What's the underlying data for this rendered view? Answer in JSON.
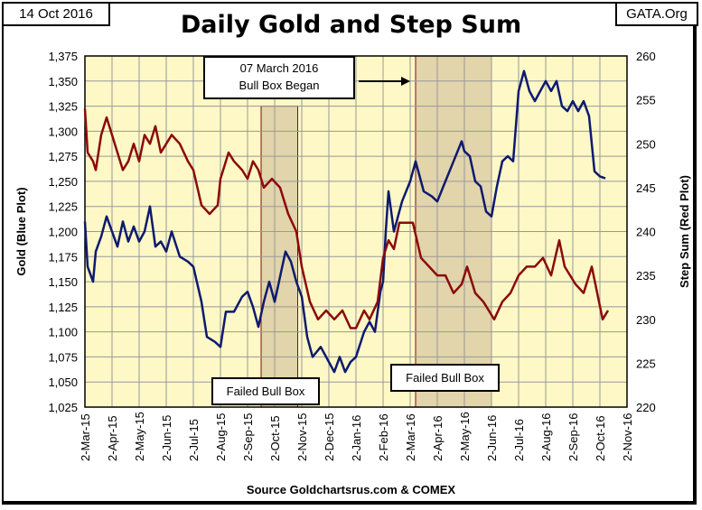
{
  "header": {
    "date": "14 Oct 2016",
    "title": "Daily Gold and Step Sum",
    "credit": "GATA.Org"
  },
  "annotations": {
    "bull_box_began": [
      "07 March 2016",
      "Bull Box Began"
    ],
    "failed_1": "Failed Bull Box",
    "failed_2": "Failed Bull Box"
  },
  "source": "Source Goldchartsrus.com & COMEX",
  "colors": {
    "gold": "#0d1a6e",
    "step": "#8b0a0a",
    "plot_bg": "#fdf8c6",
    "box": "#e2d4ab"
  },
  "chart_data": {
    "type": "line",
    "title": "Daily Gold and Step Sum",
    "xlabel": "",
    "ylabel": "Gold   (Blue Plot)",
    "y2label": "Step Sum   (Red Plot)",
    "x_ticks": [
      "2-Mar-15",
      "2-Apr-15",
      "2-May-15",
      "2-Jun-15",
      "2-Jul-15",
      "2-Aug-15",
      "2-Sep-15",
      "2-Oct-15",
      "2-Nov-15",
      "2-Dec-15",
      "2-Jan-16",
      "2-Feb-16",
      "2-Mar-16",
      "2-Apr-16",
      "2-May-16",
      "2-Jun-16",
      "2-Jul-16",
      "2-Aug-16",
      "2-Sep-16",
      "2-Oct-16",
      "2-Nov-16"
    ],
    "y_ticks": [
      "1,025",
      "1,050",
      "1,075",
      "1,100",
      "1,125",
      "1,150",
      "1,175",
      "1,200",
      "1,225",
      "1,250",
      "1,275",
      "1,300",
      "1,325",
      "1,350",
      "1,375"
    ],
    "y2_ticks": [
      "220",
      "225",
      "230",
      "235",
      "240",
      "245",
      "250",
      "255",
      "260"
    ],
    "ylim": [
      1025,
      1375
    ],
    "y2lim": [
      220,
      260
    ],
    "x_unit": "months since 2-Mar-15",
    "xlim": [
      0,
      20
    ],
    "shaded_boxes": [
      {
        "x": [
          6.5,
          7.85
        ],
        "y": [
          1025,
          1325
        ]
      },
      {
        "x": [
          12.2,
          15.0
        ],
        "y": [
          1025,
          1375
        ]
      }
    ],
    "series": [
      {
        "name": "Gold",
        "axis": "left",
        "x": [
          0,
          0.1,
          0.3,
          0.4,
          0.6,
          0.8,
          1.0,
          1.2,
          1.4,
          1.6,
          1.8,
          2.0,
          2.2,
          2.4,
          2.6,
          2.8,
          3.0,
          3.2,
          3.5,
          3.8,
          4.0,
          4.3,
          4.5,
          4.8,
          5.0,
          5.2,
          5.5,
          5.8,
          6.0,
          6.2,
          6.4,
          6.6,
          6.8,
          7.0,
          7.2,
          7.4,
          7.6,
          7.8,
          8.0,
          8.2,
          8.4,
          8.7,
          9.0,
          9.2,
          9.4,
          9.6,
          9.8,
          10.0,
          10.3,
          10.5,
          10.7,
          10.9,
          11.0,
          11.1,
          11.2,
          11.4,
          11.7,
          12.0,
          12.2,
          12.5,
          12.8,
          13.0,
          13.3,
          13.6,
          13.9,
          14.0,
          14.2,
          14.4,
          14.6,
          14.8,
          15.0,
          15.2,
          15.4,
          15.6,
          15.8,
          16.0,
          16.2,
          16.4,
          16.6,
          16.8,
          17.0,
          17.2,
          17.4,
          17.6,
          17.8,
          18.0,
          18.2,
          18.4,
          18.6,
          18.8,
          19.0,
          19.2
        ],
        "values": [
          1210,
          1165,
          1150,
          1180,
          1195,
          1215,
          1200,
          1185,
          1210,
          1190,
          1205,
          1190,
          1200,
          1225,
          1185,
          1190,
          1180,
          1200,
          1175,
          1170,
          1165,
          1130,
          1095,
          1090,
          1085,
          1120,
          1120,
          1135,
          1140,
          1125,
          1105,
          1130,
          1150,
          1130,
          1155,
          1180,
          1170,
          1150,
          1135,
          1095,
          1075,
          1085,
          1070,
          1060,
          1075,
          1060,
          1070,
          1075,
          1100,
          1110,
          1100,
          1140,
          1150,
          1200,
          1240,
          1200,
          1230,
          1250,
          1270,
          1240,
          1235,
          1230,
          1250,
          1270,
          1290,
          1280,
          1275,
          1250,
          1245,
          1220,
          1215,
          1245,
          1270,
          1275,
          1270,
          1340,
          1360,
          1340,
          1330,
          1340,
          1350,
          1340,
          1350,
          1325,
          1320,
          1330,
          1320,
          1330,
          1315,
          1260,
          1255,
          1253
        ]
      },
      {
        "name": "Step Sum",
        "axis": "right",
        "x": [
          0,
          0.1,
          0.3,
          0.4,
          0.6,
          0.8,
          1.0,
          1.2,
          1.4,
          1.6,
          1.8,
          2.0,
          2.2,
          2.4,
          2.6,
          2.8,
          3.0,
          3.2,
          3.5,
          3.8,
          4.0,
          4.3,
          4.6,
          4.9,
          5.0,
          5.3,
          5.5,
          5.8,
          6.0,
          6.2,
          6.4,
          6.6,
          6.9,
          7.2,
          7.5,
          7.8,
          8.0,
          8.3,
          8.6,
          8.9,
          9.2,
          9.5,
          9.8,
          10.0,
          10.3,
          10.5,
          10.8,
          11.0,
          11.2,
          11.4,
          11.6,
          11.9,
          12.1,
          12.4,
          12.7,
          13.0,
          13.3,
          13.6,
          13.9,
          14.1,
          14.4,
          14.7,
          14.9,
          15.1,
          15.4,
          15.7,
          16.0,
          16.3,
          16.6,
          16.9,
          17.2,
          17.5,
          17.7,
          17.9,
          18.1,
          18.4,
          18.7,
          18.9,
          19.1,
          19.3
        ],
        "values": [
          254,
          249,
          248,
          247,
          251,
          253,
          251,
          249,
          247,
          248,
          250,
          248,
          251,
          250,
          252,
          249,
          250,
          251,
          250,
          248,
          247,
          243,
          242,
          243,
          246,
          249,
          248,
          247,
          246,
          248,
          247,
          245,
          246,
          245,
          242,
          240,
          236,
          232,
          230,
          231,
          230,
          231,
          229,
          229,
          231,
          230,
          232,
          237,
          239,
          238,
          241,
          241,
          241,
          237,
          236,
          235,
          235,
          233,
          234,
          236,
          233,
          232,
          231,
          230,
          232,
          233,
          235,
          236,
          236,
          237,
          235,
          239,
          236,
          235,
          234,
          233,
          236,
          233,
          230,
          231
        ]
      }
    ]
  }
}
